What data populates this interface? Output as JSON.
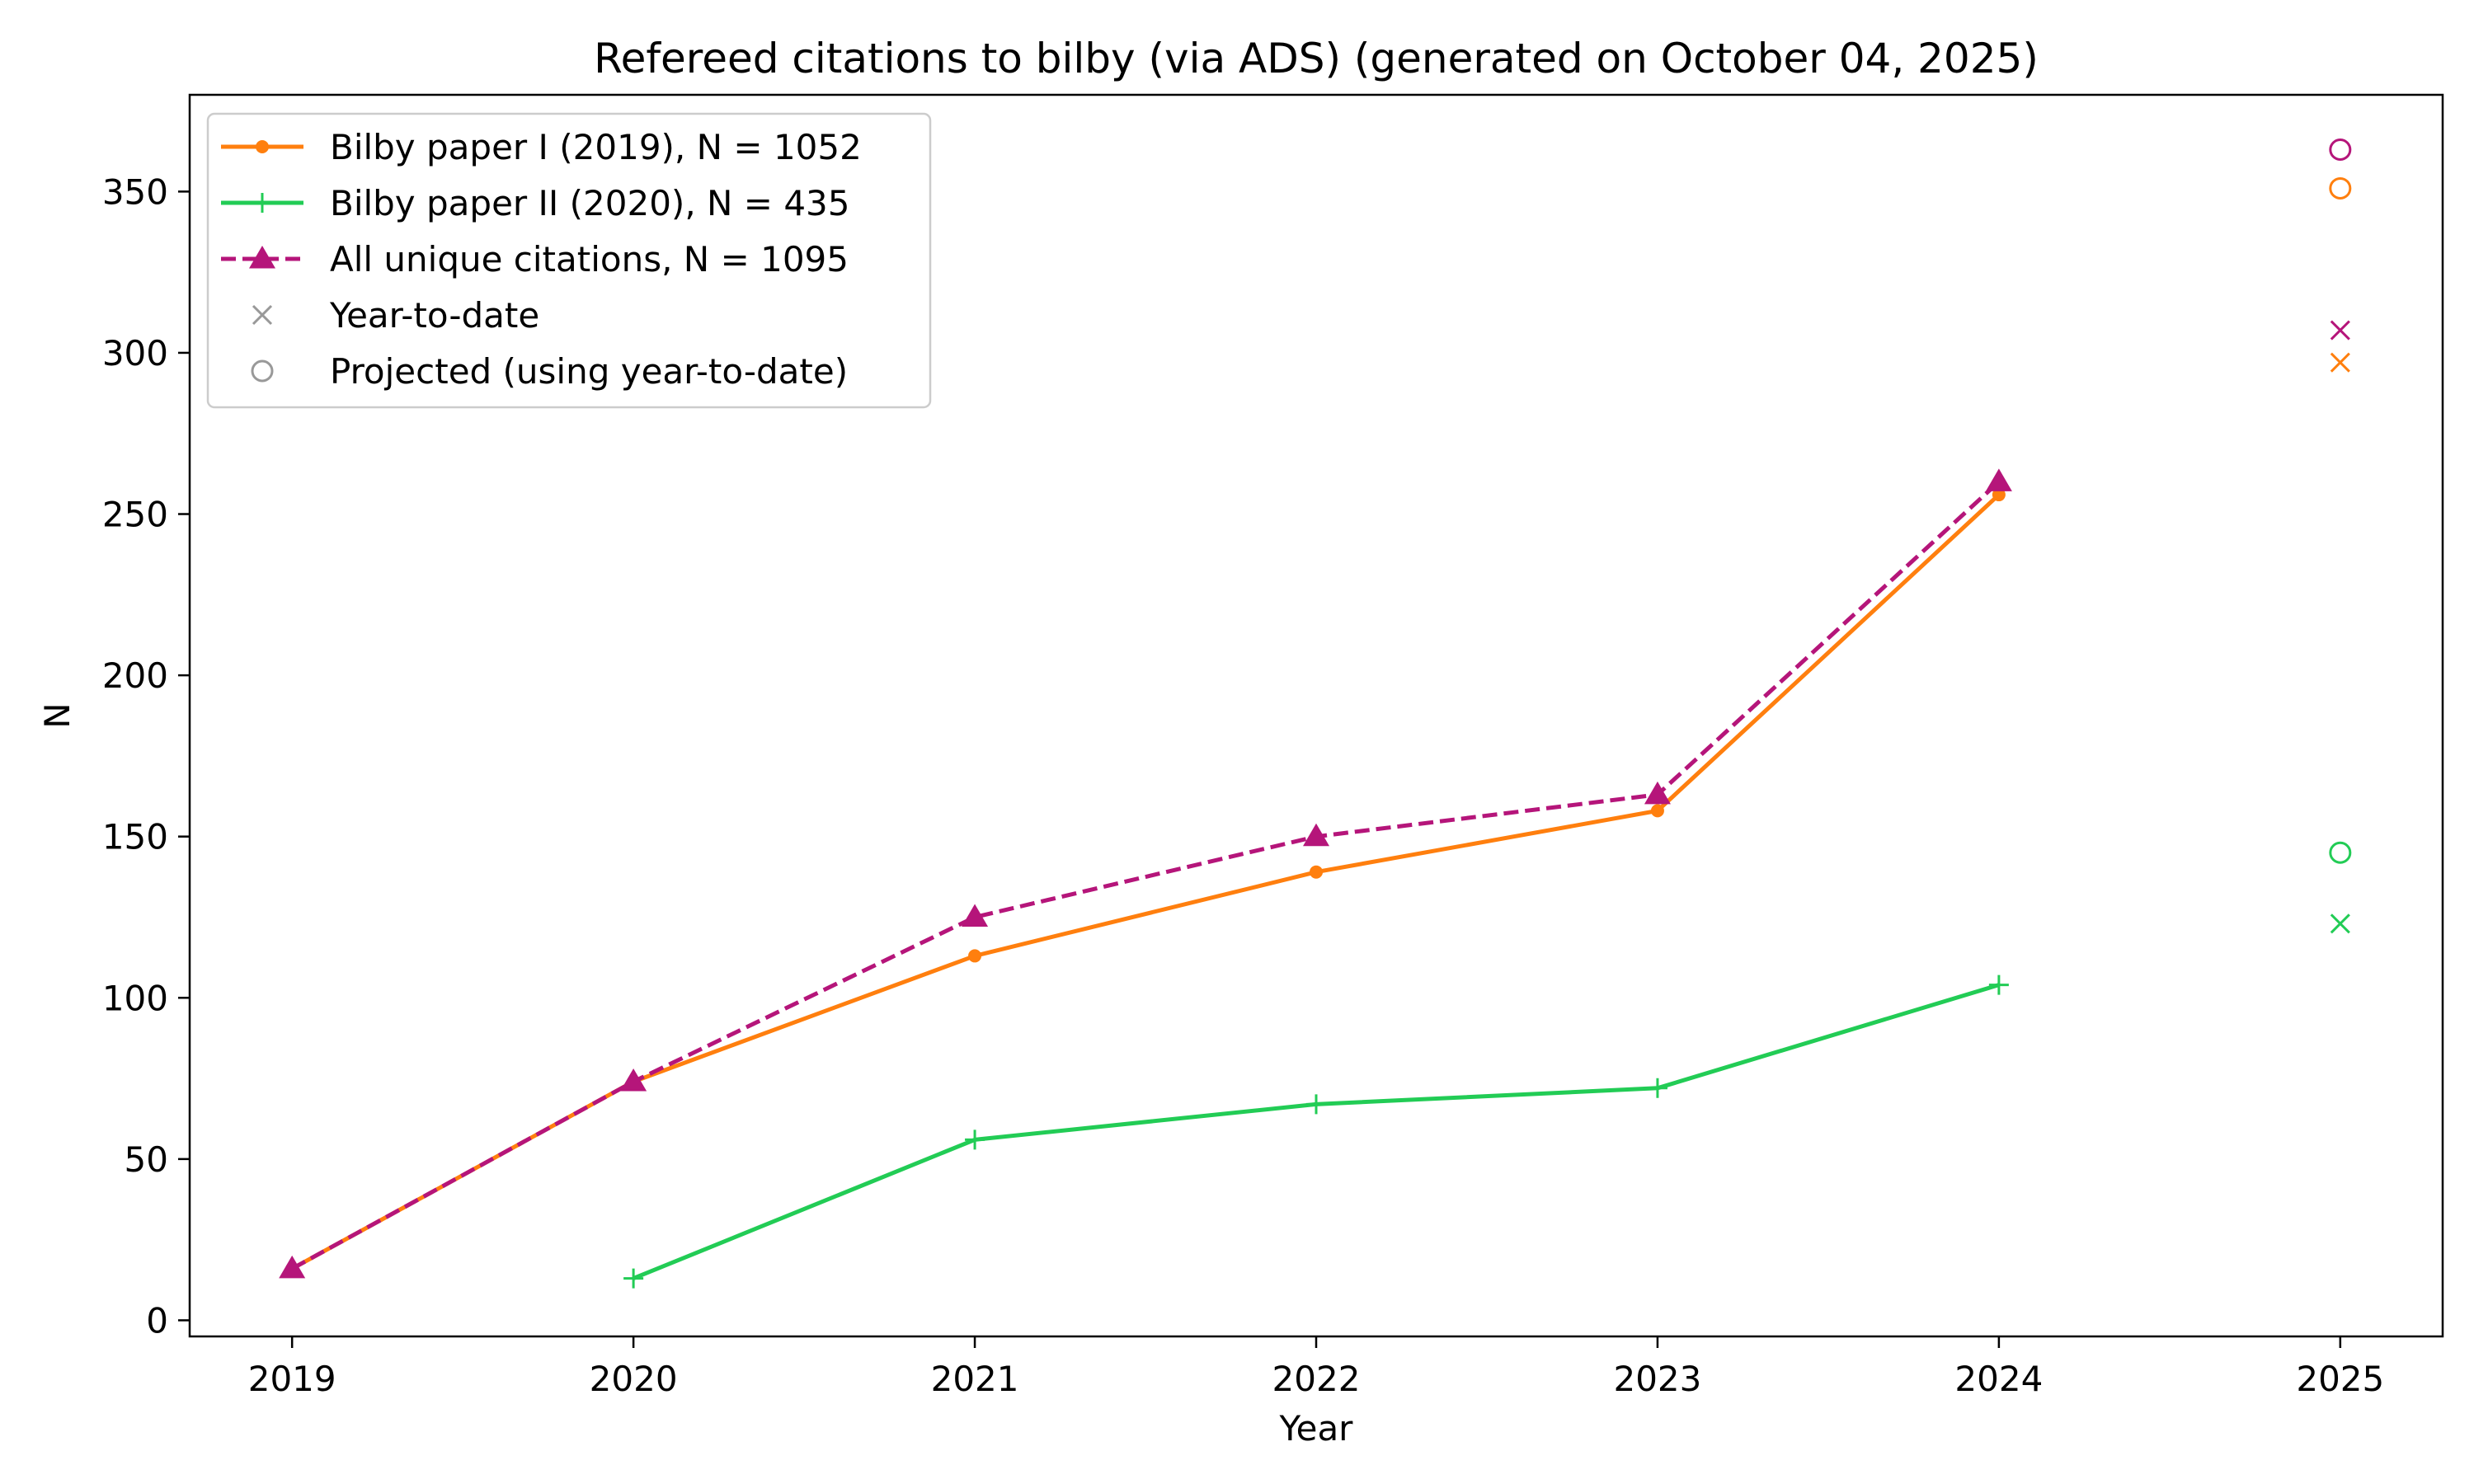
{
  "chart_data": {
    "type": "line",
    "title": "Refereed citations to bilby (via ADS) (generated on October 04, 2025)",
    "xlabel": "Year",
    "ylabel": "N",
    "x_ticks": [
      2019,
      2020,
      2021,
      2022,
      2023,
      2024,
      2025
    ],
    "y_ticks": [
      0,
      50,
      100,
      150,
      200,
      250,
      300,
      350
    ],
    "xlim": [
      2018.7,
      2025.3
    ],
    "ylim": [
      -5,
      380
    ],
    "grid": false,
    "legend_position": "upper-left",
    "series": [
      {
        "name": "Bilby paper I (2019), N = 1052",
        "color": "#ff7f0e",
        "line_style": "solid",
        "marker": "dot",
        "x": [
          2019,
          2020,
          2021,
          2022,
          2023,
          2024
        ],
        "values": [
          16,
          74,
          113,
          139,
          158,
          256
        ]
      },
      {
        "name": "Bilby paper II (2020), N = 435",
        "color": "#22cc55",
        "line_style": "solid",
        "marker": "plus",
        "x": [
          2020,
          2021,
          2022,
          2023,
          2024
        ],
        "values": [
          13,
          56,
          67,
          72,
          104
        ]
      },
      {
        "name": "All unique citations, N = 1095",
        "color": "#b5157a",
        "line_style": "dashed",
        "marker": "triangle",
        "x": [
          2019,
          2020,
          2021,
          2022,
          2023,
          2024
        ],
        "values": [
          16,
          74,
          125,
          150,
          163,
          260
        ]
      }
    ],
    "year_to_date": {
      "label": "Year-to-date",
      "x": 2025,
      "points": [
        {
          "series": "Bilby paper I (2019), N = 1052",
          "value": 297
        },
        {
          "series": "Bilby paper II (2020), N = 435",
          "value": 123
        },
        {
          "series": "All unique citations, N = 1095",
          "value": 307
        }
      ]
    },
    "projected": {
      "label": "Projected (using year-to-date)",
      "x": 2025,
      "points": [
        {
          "series": "Bilby paper I (2019), N = 1052",
          "value": 351
        },
        {
          "series": "Bilby paper II (2020), N = 435",
          "value": 145
        },
        {
          "series": "All unique citations, N = 1095",
          "value": 363
        }
      ]
    },
    "legend_marker_color": "#999999"
  }
}
